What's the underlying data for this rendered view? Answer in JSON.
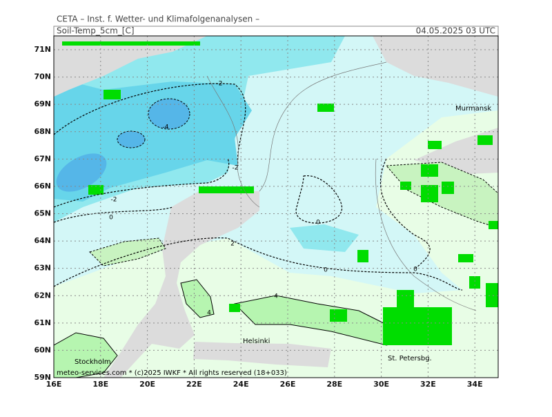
{
  "header": {
    "institute": "CETA – Inst. f. Wetter- und Klimafolgenanalysen –",
    "parameter": "Soil-Temp_5cm_[C]",
    "valid_time": "04.05.2025 03 UTC"
  },
  "map": {
    "lat_labels": [
      "71N",
      "70N",
      "69N",
      "68N",
      "67N",
      "66N",
      "65N",
      "64N",
      "63N",
      "62N",
      "61N",
      "60N",
      "59N"
    ],
    "lon_labels": [
      "16E",
      "18E",
      "20E",
      "22E",
      "24E",
      "26E",
      "28E",
      "30E",
      "32E",
      "34E"
    ],
    "cities": [
      "Murmansk",
      "Helsinki",
      "Stockholm",
      "St. Petersbg."
    ],
    "contour_labels": [
      "-2",
      "-4",
      "-2",
      "-2",
      "0",
      "2",
      "0",
      "0",
      "0",
      "4",
      "4"
    ]
  },
  "footer": "meteo-services.com * (c)2025 IWKF * All rights reserved (18+033)"
}
